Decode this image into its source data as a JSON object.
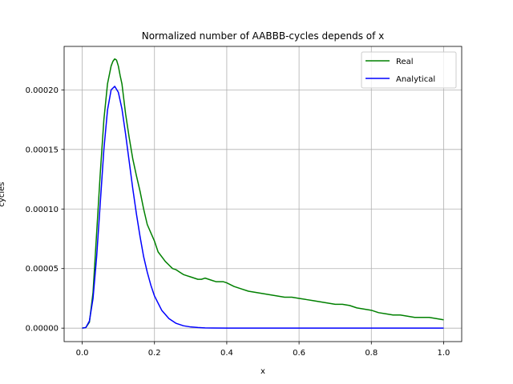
{
  "chart_data": {
    "type": "line",
    "title": "Normalized number of AABBB-cycles depends of x",
    "xlabel": "x",
    "ylabel": "cycles",
    "xlim": [
      -0.05,
      1.05
    ],
    "ylim": [
      -1.13e-05,
      0.0002365
    ],
    "x_ticks": [
      0.0,
      0.2,
      0.4,
      0.6,
      0.8,
      1.0
    ],
    "x_tick_labels": [
      "0.0",
      "0.2",
      "0.4",
      "0.6",
      "0.8",
      "1.0"
    ],
    "y_ticks": [
      0.0,
      5e-05,
      0.0001,
      0.00015,
      0.0002
    ],
    "y_tick_labels": [
      "0.00000",
      "0.00005",
      "0.00010",
      "0.00015",
      "0.00020"
    ],
    "grid": true,
    "legend_position": "top-right",
    "series": [
      {
        "name": "Real",
        "color": "#008000",
        "x": [
          0.0,
          0.01,
          0.02,
          0.03,
          0.04,
          0.05,
          0.06,
          0.07,
          0.08,
          0.085,
          0.09,
          0.095,
          0.1,
          0.105,
          0.11,
          0.12,
          0.13,
          0.14,
          0.15,
          0.16,
          0.17,
          0.18,
          0.19,
          0.2,
          0.21,
          0.22,
          0.23,
          0.24,
          0.25,
          0.26,
          0.27,
          0.28,
          0.29,
          0.3,
          0.31,
          0.32,
          0.33,
          0.34,
          0.35,
          0.36,
          0.37,
          0.38,
          0.39,
          0.4,
          0.42,
          0.44,
          0.46,
          0.48,
          0.5,
          0.52,
          0.54,
          0.56,
          0.58,
          0.6,
          0.62,
          0.64,
          0.66,
          0.68,
          0.7,
          0.72,
          0.74,
          0.76,
          0.78,
          0.8,
          0.82,
          0.84,
          0.86,
          0.88,
          0.9,
          0.92,
          0.94,
          0.96,
          0.98,
          1.0
        ],
        "y": [
          0.0,
          5e-07,
          5e-06,
          3e-05,
          8e-05,
          0.00013,
          0.000175,
          0.000205,
          0.00022,
          0.000224,
          0.000226,
          0.000225,
          0.00022,
          0.000212,
          0.000205,
          0.00018,
          0.00016,
          0.000142,
          0.000128,
          0.000115,
          0.0001,
          8.7e-05,
          8e-05,
          7.3e-05,
          6.4e-05,
          6e-05,
          5.6e-05,
          5.3e-05,
          5e-05,
          4.9e-05,
          4.7e-05,
          4.5e-05,
          4.4e-05,
          4.3e-05,
          4.2e-05,
          4.1e-05,
          4.1e-05,
          4.2e-05,
          4.1e-05,
          4e-05,
          3.9e-05,
          3.9e-05,
          3.9e-05,
          3.8e-05,
          3.5e-05,
          3.3e-05,
          3.1e-05,
          3e-05,
          2.9e-05,
          2.8e-05,
          2.7e-05,
          2.6e-05,
          2.6e-05,
          2.5e-05,
          2.4e-05,
          2.3e-05,
          2.2e-05,
          2.1e-05,
          2e-05,
          2e-05,
          1.9e-05,
          1.7e-05,
          1.6e-05,
          1.5e-05,
          1.3e-05,
          1.2e-05,
          1.1e-05,
          1.1e-05,
          1e-05,
          9e-06,
          9e-06,
          9e-06,
          8e-06,
          7e-06
        ]
      },
      {
        "name": "Analytical",
        "color": "#0000ff",
        "x": [
          0.0,
          0.01,
          0.02,
          0.03,
          0.04,
          0.05,
          0.06,
          0.07,
          0.08,
          0.09,
          0.1,
          0.11,
          0.12,
          0.13,
          0.14,
          0.15,
          0.16,
          0.17,
          0.18,
          0.19,
          0.2,
          0.22,
          0.24,
          0.26,
          0.28,
          0.3,
          0.32,
          0.34,
          0.36,
          0.4,
          0.5,
          0.6,
          0.7,
          0.8,
          0.9,
          1.0
        ],
        "y": [
          0.0,
          5e-07,
          6e-06,
          2.5e-05,
          6e-05,
          0.000105,
          0.00015,
          0.000183,
          0.0002,
          0.000203,
          0.000198,
          0.000184,
          0.000163,
          0.00014,
          0.000117,
          9.6e-05,
          7.7e-05,
          6e-05,
          4.7e-05,
          3.6e-05,
          2.7e-05,
          1.5e-05,
          8e-06,
          4e-06,
          2e-06,
          1e-06,
          5e-07,
          2e-07,
          1e-07,
          0.0,
          0.0,
          0.0,
          0.0,
          0.0,
          0.0,
          0.0
        ]
      }
    ]
  }
}
